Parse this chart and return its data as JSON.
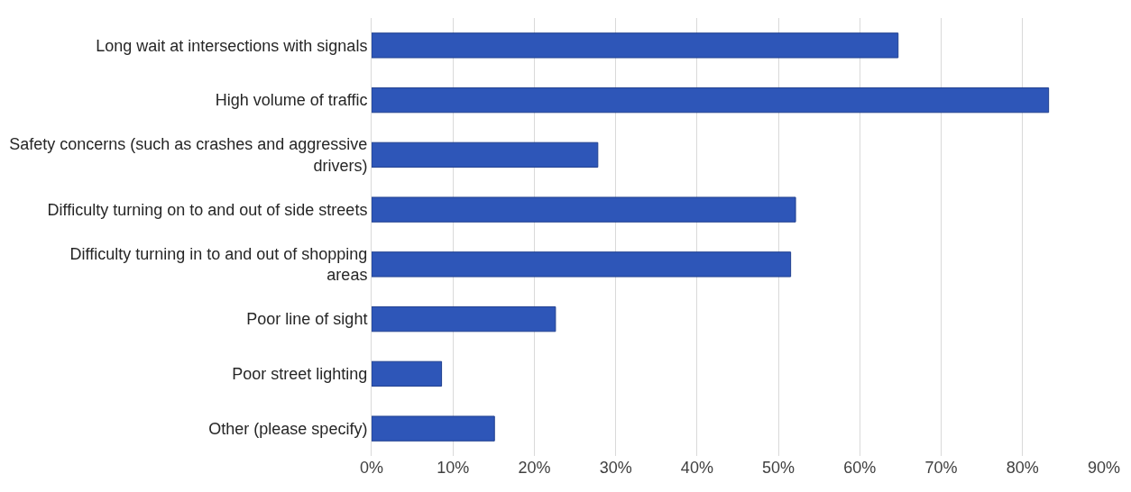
{
  "chart_data": {
    "type": "bar",
    "orientation": "horizontal",
    "categories": [
      "Long wait at intersections with signals",
      "High volume of traffic",
      "Safety concerns (such as crashes and aggressive drivers)",
      "Difficulty turning on to and out of side streets",
      "Difficulty turning in to and out of shopping areas",
      "Poor line of sight",
      "Poor street lighting",
      "Other (please specify)"
    ],
    "values": [
      64.7,
      83.2,
      27.8,
      52.1,
      51.5,
      22.6,
      8.6,
      15.1
    ],
    "color": "#2e56b8",
    "xlim": [
      0,
      90
    ],
    "xticks": [
      {
        "value": 0,
        "label": "0%"
      },
      {
        "value": 10,
        "label": "10%"
      },
      {
        "value": 20,
        "label": "20%"
      },
      {
        "value": 30,
        "label": "30%"
      },
      {
        "value": 40,
        "label": "40%"
      },
      {
        "value": 50,
        "label": "50%"
      },
      {
        "value": 60,
        "label": "60%"
      },
      {
        "value": 70,
        "label": "70%"
      },
      {
        "value": 80,
        "label": "80%"
      },
      {
        "value": 90,
        "label": "90%"
      }
    ],
    "grid": "x"
  }
}
